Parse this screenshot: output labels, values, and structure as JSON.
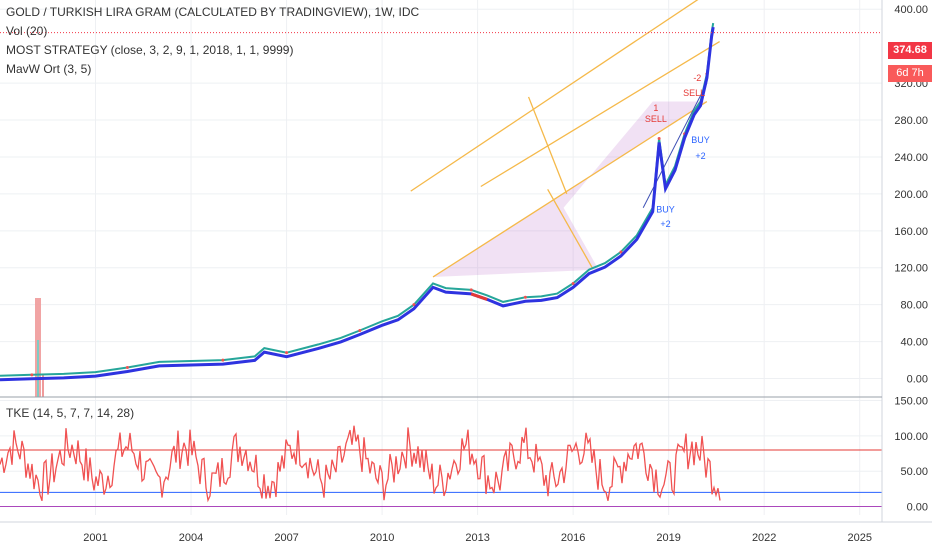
{
  "chart_data": [
    {
      "type": "line",
      "title": "GOLD / TURKISH LIRA GRAM (CALCULATED BY TRADINGVIEW), 1W, IDC",
      "indicators": [
        "Vol (20)",
        "MOST STRATEGY (close, 3, 2, 9, 1, 2018, 1, 1, 9999)",
        "MavW Ort (3, 5)"
      ],
      "x_ticks": [
        "2001",
        "2004",
        "2007",
        "2010",
        "2013",
        "2016",
        "2019",
        "2022",
        "2025"
      ],
      "y_ticks": [
        "0.00",
        "40.00",
        "80.00",
        "120.00",
        "160.00",
        "200.00",
        "240.00",
        "280.00",
        "320.00",
        "400.00"
      ],
      "ylim": [
        -20,
        410
      ],
      "xlim": [
        1998.0,
        2025.7
      ],
      "last_price": "374.68",
      "bar_countdown": "6d 7h",
      "series": [
        {
          "values": [
            [
              1998.0,
              3
            ],
            [
              1999.0,
              4
            ],
            [
              2000.0,
              5
            ],
            [
              2001.0,
              7
            ],
            [
              2002.0,
              12
            ],
            [
              2003.0,
              18
            ],
            [
              2004.0,
              19
            ],
            [
              2005.0,
              20
            ],
            [
              2006.0,
              24
            ],
            [
              2006.3,
              33
            ],
            [
              2007.0,
              28
            ],
            [
              2008.0,
              37
            ],
            [
              2008.7,
              44
            ],
            [
              2009.3,
              52
            ],
            [
              2010.0,
              62
            ],
            [
              2010.5,
              68
            ],
            [
              2011.0,
              80
            ],
            [
              2011.6,
              103
            ],
            [
              2012.0,
              98
            ],
            [
              2012.8,
              96
            ],
            [
              2013.3,
              90
            ],
            [
              2013.8,
              83
            ],
            [
              2014.5,
              88
            ],
            [
              2015.0,
              89
            ],
            [
              2015.5,
              92
            ],
            [
              2016.0,
              103
            ],
            [
              2016.5,
              118
            ],
            [
              2017.0,
              125
            ],
            [
              2017.5,
              137
            ],
            [
              2018.0,
              155
            ],
            [
              2018.5,
              185
            ],
            [
              2018.7,
              260
            ],
            [
              2018.9,
              210
            ],
            [
              2019.2,
              230
            ],
            [
              2019.5,
              265
            ],
            [
              2019.8,
              290
            ],
            [
              2020.0,
              300
            ],
            [
              2020.2,
              330
            ],
            [
              2020.35,
              374.68
            ],
            [
              2020.4,
              385
            ]
          ]
        }
      ],
      "signals": [
        {
          "label": "1",
          "x": 2018.6,
          "y": 290
        },
        {
          "label": "SELL",
          "x": 2018.6,
          "y": 278
        },
        {
          "label": "-2",
          "x": 2019.9,
          "y": 322
        },
        {
          "label": "SELL",
          "x": 2019.8,
          "y": 306
        },
        {
          "label": "BUY",
          "x": 2018.9,
          "y": 180
        },
        {
          "label": "+2",
          "x": 2018.9,
          "y": 164
        },
        {
          "label": "BUY",
          "x": 2020.0,
          "y": 255
        },
        {
          "label": "+2",
          "x": 2020.0,
          "y": 238
        }
      ]
    },
    {
      "type": "line",
      "title": "TKE (14, 5, 7, 7, 14, 28)",
      "y_ticks": [
        "0.00",
        "50.00",
        "100.00",
        "150.00"
      ],
      "ylim": [
        -12,
        155
      ],
      "levels": [
        80,
        20,
        0
      ]
    }
  ]
}
